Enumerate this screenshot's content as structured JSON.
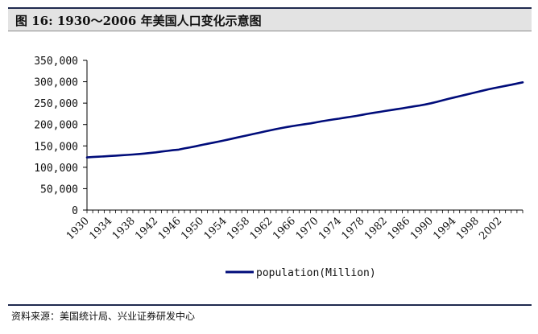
{
  "header": {
    "title": "图 16:  1930～2006 年美国人口变化示意图"
  },
  "footer": {
    "source": "资料来源：美国统计局、兴业证券研发中心"
  },
  "colors": {
    "series_line": "#000c7a",
    "title_bar": "#e3e3e3",
    "rule": "#1f2a4f"
  },
  "chart_data": {
    "type": "line",
    "title": "",
    "xlabel": "",
    "ylabel": "",
    "xlim": [
      1930,
      2006
    ],
    "ylim": [
      0,
      350000
    ],
    "y_ticks": [
      0,
      50000,
      100000,
      150000,
      200000,
      250000,
      300000,
      350000
    ],
    "y_tick_labels": [
      "0",
      "50,000",
      "100,000",
      "150,000",
      "200,000",
      "250,000",
      "300,000",
      "350,000"
    ],
    "x_tick_labels": [
      "1930",
      "1934",
      "1938",
      "1942",
      "1946",
      "1950",
      "1954",
      "1958",
      "1962",
      "1966",
      "1970",
      "1974",
      "1978",
      "1982",
      "1986",
      "1990",
      "1994",
      "1998",
      "2002"
    ],
    "grid": false,
    "legend": "bottom-center",
    "series": [
      {
        "name": "population(Million)",
        "x": [
          1930,
          1931,
          1932,
          1933,
          1934,
          1935,
          1936,
          1937,
          1938,
          1939,
          1940,
          1941,
          1942,
          1943,
          1944,
          1945,
          1946,
          1947,
          1948,
          1949,
          1950,
          1951,
          1952,
          1953,
          1954,
          1955,
          1956,
          1957,
          1958,
          1959,
          1960,
          1961,
          1962,
          1963,
          1964,
          1965,
          1966,
          1967,
          1968,
          1969,
          1970,
          1971,
          1972,
          1973,
          1974,
          1975,
          1976,
          1977,
          1978,
          1979,
          1980,
          1981,
          1982,
          1983,
          1984,
          1985,
          1986,
          1987,
          1988,
          1989,
          1990,
          1991,
          1992,
          1993,
          1994,
          1995,
          1996,
          1997,
          1998,
          1999,
          2000,
          2001,
          2002,
          2003,
          2004,
          2005,
          2006
        ],
        "values": [
          123077,
          124040,
          124840,
          125579,
          126374,
          127250,
          128053,
          128825,
          129825,
          130880,
          132122,
          133402,
          134860,
          136739,
          138397,
          139928,
          141389,
          144126,
          146631,
          149188,
          152271,
          154878,
          157553,
          160184,
          163026,
          165931,
          168903,
          171984,
          174882,
          177830,
          180671,
          183691,
          186538,
          189242,
          191889,
          194303,
          196560,
          198712,
          200706,
          202677,
          205052,
          207661,
          209896,
          211909,
          213854,
          215973,
          218035,
          220239,
          222585,
          225055,
          227225,
          229466,
          231664,
          233792,
          235825,
          237924,
          240133,
          242289,
          244499,
          246819,
          249623,
          252981,
          256514,
          259919,
          263126,
          266278,
          269394,
          272647,
          275854,
          279040,
          282172,
          285082,
          287804,
          290326,
          293046,
          295753,
          298593
        ]
      }
    ]
  }
}
